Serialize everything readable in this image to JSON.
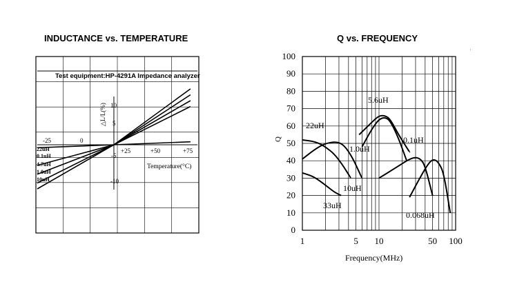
{
  "chart_data": [
    {
      "type": "line",
      "title": "INDUCTANCE vs. TEMPERATURE",
      "annotation": "Test equipment:HP-4291A Impedance analyzer",
      "xlabel": "Temperature(°C)",
      "ylabel": "△L/L(%)",
      "x_ticks": [
        "-25",
        "0",
        "+25",
        "+50",
        "+75"
      ],
      "y_ticks": [
        "10",
        "5",
        "-5",
        "-10"
      ],
      "xlim": [
        -35,
        80
      ],
      "ylim": [
        -15,
        15
      ],
      "grid": true,
      "series": [
        {
          "name": "22uH",
          "x": [
            -35,
            20,
            75
          ],
          "y": [
            -0.5,
            0,
            0.5
          ]
        },
        {
          "name": "0.1uH",
          "x": [
            -35,
            20,
            75
          ],
          "y": [
            -3.5,
            0,
            6.5
          ]
        },
        {
          "name": "4.7uH",
          "x": [
            -35,
            20,
            75
          ],
          "y": [
            -5,
            0,
            7.5
          ]
        },
        {
          "name": "1.0uH",
          "x": [
            -35,
            20,
            75
          ],
          "y": [
            -6.5,
            0,
            8.5
          ]
        },
        {
          "name": "10uH",
          "x": [
            -35,
            20,
            75
          ],
          "y": [
            -7.5,
            0,
            9.5
          ]
        }
      ]
    },
    {
      "type": "line",
      "title": "Q vs. FREQUENCY",
      "xlabel": "Frequency(MHz)",
      "ylabel": "Q",
      "x_scale": "log",
      "x_ticks": [
        "1",
        "5",
        "10",
        "50",
        "100"
      ],
      "y_ticks": [
        "0",
        "10",
        "20",
        "30",
        "40",
        "50",
        "60",
        "70",
        "80",
        "90",
        "100"
      ],
      "xlim": [
        1,
        100
      ],
      "ylim": [
        0,
        100
      ],
      "grid": true,
      "series": [
        {
          "name": "22uH",
          "x": [
            1,
            1.5,
            2,
            2.6,
            3.3,
            4.3
          ],
          "y": [
            52,
            51,
            48,
            44,
            38,
            30
          ]
        },
        {
          "name": "10uH",
          "x": [
            1,
            1.5,
            2,
            2.8,
            3.5,
            4.5,
            6
          ],
          "y": [
            41,
            47,
            50,
            51,
            49,
            42,
            30
          ]
        },
        {
          "name": "33uH",
          "x": [
            1,
            1.4,
            2,
            2.6,
            3.2
          ],
          "y": [
            33,
            31,
            26,
            22,
            20
          ]
        },
        {
          "name": "5.6uH",
          "x": [
            5.5,
            8,
            10,
            12,
            14,
            18,
            25
          ],
          "y": [
            55,
            62,
            66,
            66,
            64,
            55,
            45
          ]
        },
        {
          "name": "1.0uH",
          "x": [
            6,
            8,
            10,
            12,
            14,
            18,
            23
          ],
          "y": [
            48,
            58,
            64,
            65,
            63,
            53,
            40
          ]
        },
        {
          "name": "0.1uH",
          "x": [
            10,
            18,
            25,
            30,
            35,
            40,
            50
          ],
          "y": [
            30,
            37,
            41,
            42,
            41,
            37,
            20
          ]
        },
        {
          "name": "0.068uH",
          "x": [
            25,
            35,
            45,
            52,
            60,
            70,
            85
          ],
          "y": [
            19,
            31,
            39,
            41,
            39,
            33,
            10
          ]
        }
      ]
    }
  ]
}
